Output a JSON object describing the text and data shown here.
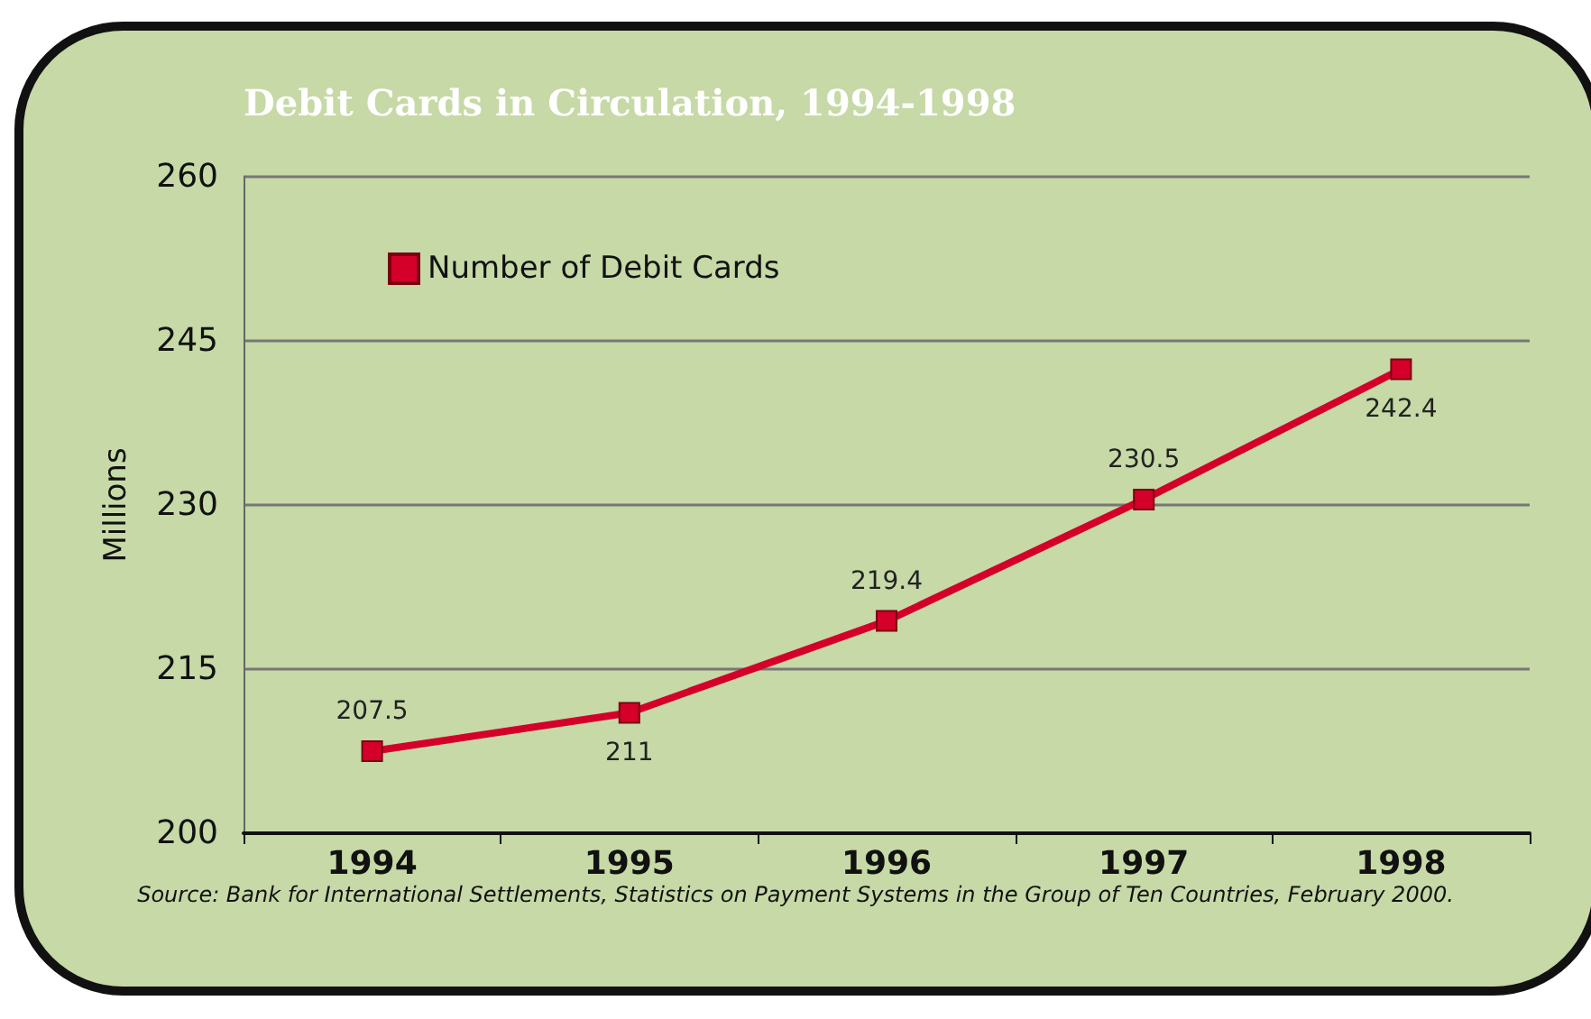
{
  "chart_data": {
    "type": "line",
    "title": "Debit Cards in Circulation, 1994-1998",
    "ylabel": "Millions",
    "categories": [
      "1994",
      "1995",
      "1996",
      "1997",
      "1998"
    ],
    "series": [
      {
        "name": "Number of Debit Cards",
        "color": "#d4002a",
        "values": [
          207.5,
          211,
          219.4,
          230.5,
          242.4
        ]
      }
    ],
    "ylim": [
      200,
      260
    ],
    "yticks": [
      200,
      215,
      230,
      245,
      260
    ],
    "grid": "y",
    "legend": "top left",
    "marker": "square",
    "data_labels": true,
    "annotations": [
      "Source: Bank for International Settlements, Statistics on Payment Systems in the Group of Ten Countries, February 2000."
    ]
  }
}
